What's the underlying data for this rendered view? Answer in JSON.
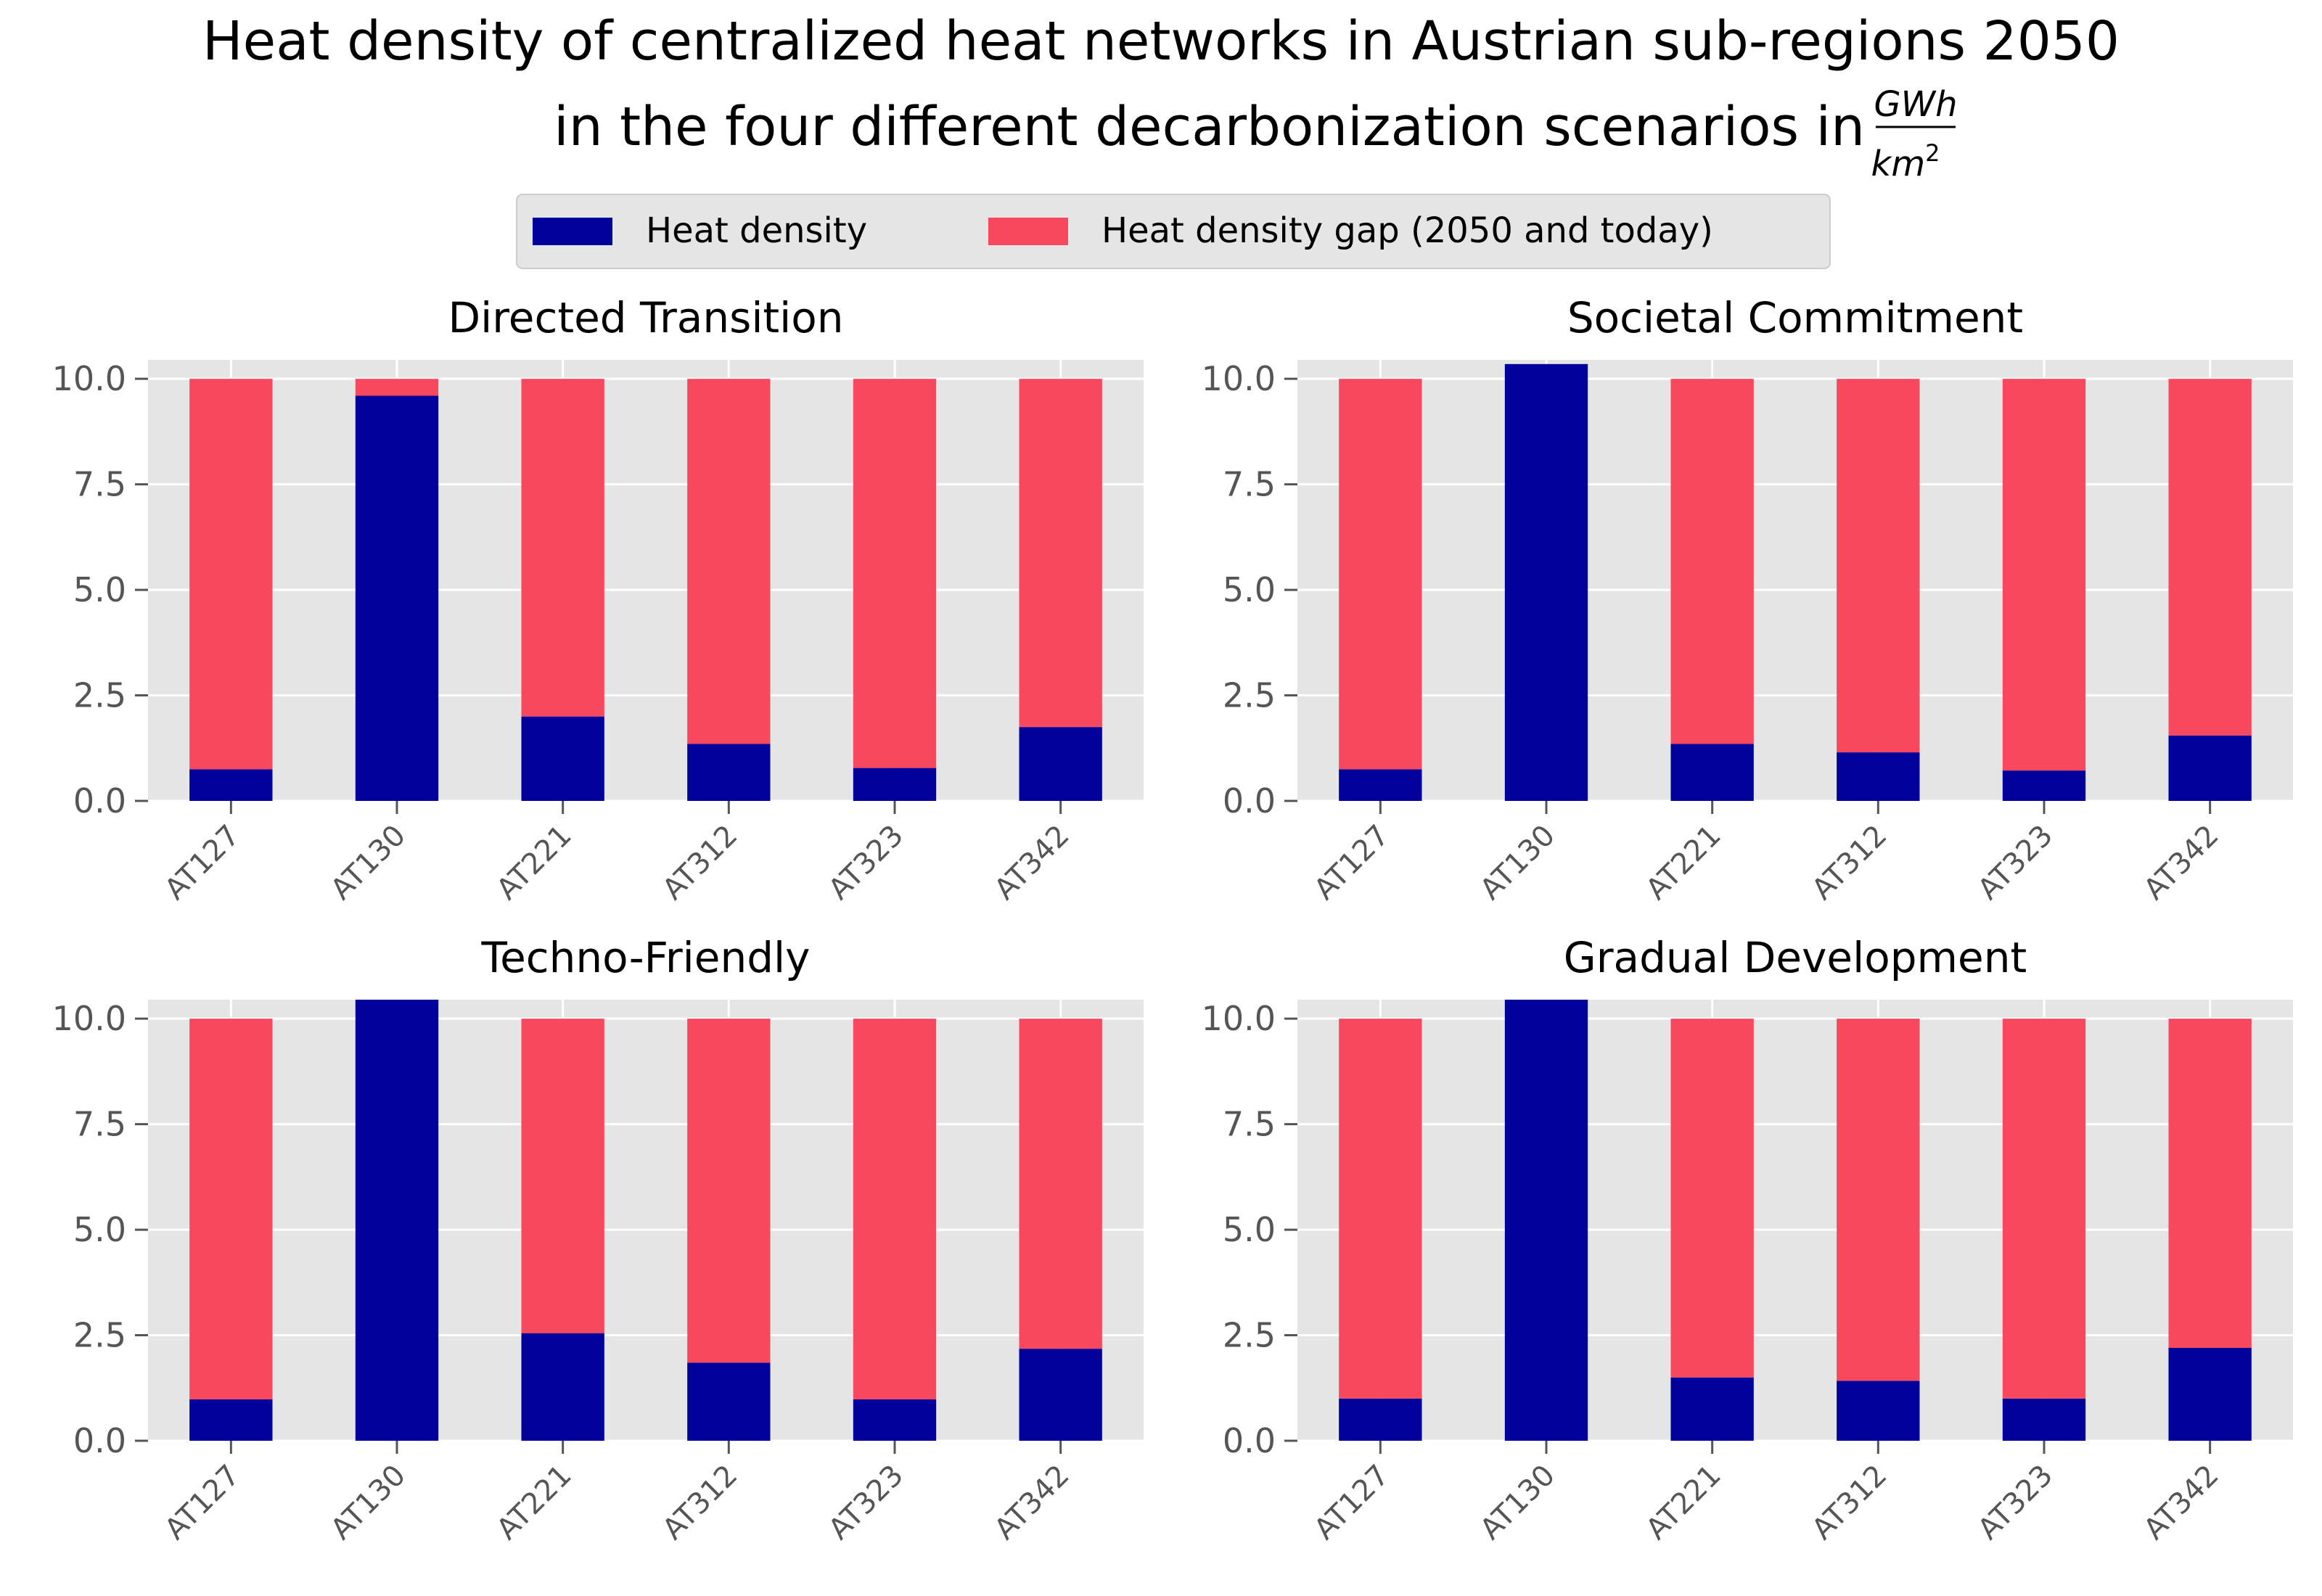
{
  "title": {
    "line1": "Heat density of centralized heat networks in Austrian sub-regions 2050",
    "line2": "in the four different decarbonization scenarios in",
    "unit_numerator": "GWh",
    "unit_denominator": "km",
    "unit_exponent": "2"
  },
  "legend": {
    "placement": "top-center",
    "items": [
      {
        "label": "Heat density",
        "color": "#02019c"
      },
      {
        "label": "Heat density gap (2050 and today)",
        "color": "#f8485e"
      }
    ]
  },
  "chart_data": [
    {
      "type": "bar",
      "stacked": true,
      "title": "Directed Transition",
      "categories": [
        "AT127",
        "AT130",
        "AT221",
        "AT312",
        "AT323",
        "AT342"
      ],
      "yticks": [
        "0.0",
        "2.5",
        "5.0",
        "7.5",
        "10.0"
      ],
      "ylim": [
        0,
        10.45
      ],
      "series": [
        {
          "name": "Heat density",
          "values": [
            0.75,
            9.6,
            2.0,
            1.35,
            0.78,
            1.75
          ]
        },
        {
          "name": "Heat density gap (2050 and today)",
          "values": [
            9.25,
            0.4,
            8.0,
            8.65,
            9.22,
            8.25
          ]
        }
      ]
    },
    {
      "type": "bar",
      "stacked": true,
      "title": "Societal Commitment",
      "categories": [
        "AT127",
        "AT130",
        "AT221",
        "AT312",
        "AT323",
        "AT342"
      ],
      "yticks": [
        "0.0",
        "2.5",
        "5.0",
        "7.5",
        "10.0"
      ],
      "ylim": [
        0,
        10.45
      ],
      "series": [
        {
          "name": "Heat density",
          "values": [
            0.75,
            10.35,
            1.35,
            1.15,
            0.72,
            1.55
          ]
        },
        {
          "name": "Heat density gap (2050 and today)",
          "values": [
            9.25,
            0,
            8.65,
            8.85,
            9.28,
            8.45
          ]
        }
      ]
    },
    {
      "type": "bar",
      "stacked": true,
      "title": "Techno-Friendly",
      "categories": [
        "AT127",
        "AT130",
        "AT221",
        "AT312",
        "AT323",
        "AT342"
      ],
      "yticks": [
        "0.0",
        "2.5",
        "5.0",
        "7.5",
        "10.0"
      ],
      "ylim": [
        0,
        10.45
      ],
      "series": [
        {
          "name": "Heat density",
          "values": [
            0.98,
            10.45,
            2.55,
            1.85,
            0.98,
            2.18
          ]
        },
        {
          "name": "Heat density gap (2050 and today)",
          "values": [
            9.02,
            0,
            7.45,
            8.15,
            9.02,
            7.82
          ]
        }
      ]
    },
    {
      "type": "bar",
      "stacked": true,
      "title": "Gradual Development",
      "categories": [
        "AT127",
        "AT130",
        "AT221",
        "AT312",
        "AT323",
        "AT342"
      ],
      "yticks": [
        "0.0",
        "2.5",
        "5.0",
        "7.5",
        "10.0"
      ],
      "ylim": [
        0,
        10.45
      ],
      "series": [
        {
          "name": "Heat density",
          "values": [
            1.0,
            10.45,
            1.5,
            1.42,
            1.0,
            2.2
          ]
        },
        {
          "name": "Heat density gap (2050 and today)",
          "values": [
            9.0,
            0,
            8.5,
            8.58,
            9.0,
            7.8
          ]
        }
      ]
    }
  ]
}
